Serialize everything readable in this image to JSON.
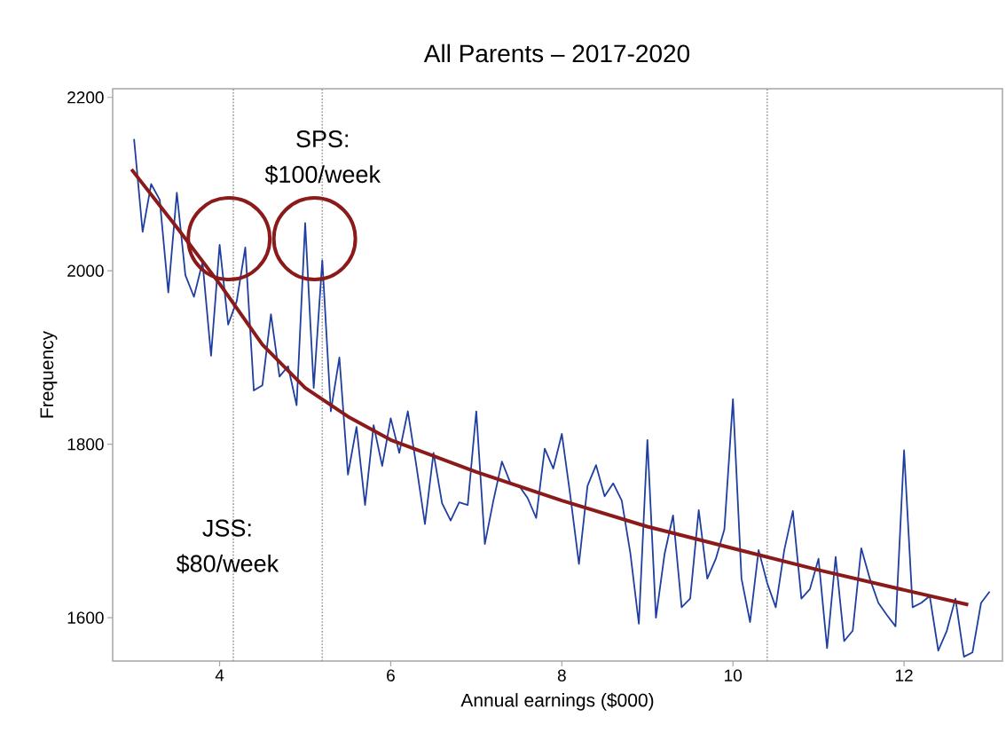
{
  "chart_data": {
    "type": "line",
    "title": "All Parents – 2017-2020",
    "xlabel": "Annual earnings ($000)",
    "ylabel": "Frequency",
    "xlim": [
      2.75,
      13.15
    ],
    "ylim": [
      1550,
      2210
    ],
    "xticks": [
      4,
      6,
      8,
      10,
      12
    ],
    "yticks": [
      1600,
      1800,
      2000,
      2200
    ],
    "marker": "none",
    "series": [
      {
        "color": "#1f3fa0",
        "line_style": "solid",
        "x": [
          3.0,
          3.1,
          3.2,
          3.3,
          3.4,
          3.5,
          3.6,
          3.7,
          3.8,
          3.9,
          4.0,
          4.1,
          4.2,
          4.3,
          4.4,
          4.5,
          4.6,
          4.7,
          4.8,
          4.9,
          5.0,
          5.1,
          5.2,
          5.3,
          5.4,
          5.5,
          5.6,
          5.7,
          5.8,
          5.9,
          6.0,
          6.1,
          6.2,
          6.3,
          6.4,
          6.5,
          6.6,
          6.7,
          6.8,
          6.9,
          7.0,
          7.1,
          7.2,
          7.3,
          7.4,
          7.5,
          7.6,
          7.7,
          7.8,
          7.9,
          8.0,
          8.1,
          8.2,
          8.3,
          8.4,
          8.5,
          8.6,
          8.7,
          8.8,
          8.9,
          9.0,
          9.1,
          9.2,
          9.3,
          9.4,
          9.5,
          9.6,
          9.7,
          9.8,
          9.9,
          10.0,
          10.1,
          10.2,
          10.3,
          10.4,
          10.5,
          10.6,
          10.7,
          10.8,
          10.9,
          11.0,
          11.1,
          11.2,
          11.3,
          11.4,
          11.5,
          11.6,
          11.7,
          11.8,
          11.9,
          12.0,
          12.1,
          12.2,
          12.3,
          12.4,
          12.5,
          12.6,
          12.7,
          12.8,
          12.9,
          13.0
        ],
        "values": [
          2152,
          2045,
          2100,
          2082,
          1975,
          2090,
          1995,
          1970,
          2010,
          1902,
          2030,
          1938,
          1965,
          2027,
          1862,
          1868,
          1950,
          1878,
          1890,
          1845,
          2055,
          1865,
          2012,
          1838,
          1900,
          1765,
          1820,
          1730,
          1822,
          1775,
          1830,
          1790,
          1838,
          1775,
          1708,
          1790,
          1732,
          1712,
          1733,
          1730,
          1838,
          1685,
          1735,
          1780,
          1755,
          1752,
          1738,
          1715,
          1795,
          1772,
          1812,
          1740,
          1662,
          1752,
          1776,
          1740,
          1755,
          1735,
          1675,
          1593,
          1805,
          1600,
          1673,
          1718,
          1612,
          1622,
          1724,
          1645,
          1668,
          1702,
          1852,
          1645,
          1595,
          1678,
          1640,
          1612,
          1678,
          1723,
          1622,
          1633,
          1668,
          1565,
          1670,
          1573,
          1585,
          1680,
          1645,
          1617,
          1603,
          1590,
          1793,
          1612,
          1617,
          1625,
          1562,
          1585,
          1622,
          1555,
          1560,
          1617,
          1630
        ]
      },
      {
        "color": "#8b1a1a",
        "line_style": "solid",
        "x": [
          2.97,
          3.5,
          4.0,
          4.5,
          5.0,
          5.5,
          6.0,
          7.0,
          8.0,
          9.0,
          10.0,
          11.0,
          12.0,
          12.75
        ],
        "values": [
          2117,
          2050,
          1985,
          1915,
          1865,
          1832,
          1805,
          1768,
          1735,
          1705,
          1680,
          1655,
          1632,
          1615
        ]
      }
    ],
    "annotations": [
      "SPS: $100/week",
      "JSS: $80/week"
    ],
    "ref_lines": [
      {
        "axis": "x",
        "value": 4.16,
        "color": "#999999",
        "line_style": "dotted"
      },
      {
        "axis": "x",
        "value": 5.2,
        "color": "#999999",
        "line_style": "dotted"
      },
      {
        "axis": "x",
        "value": 10.4,
        "color": "#999999",
        "line_style": "dotted"
      }
    ]
  }
}
